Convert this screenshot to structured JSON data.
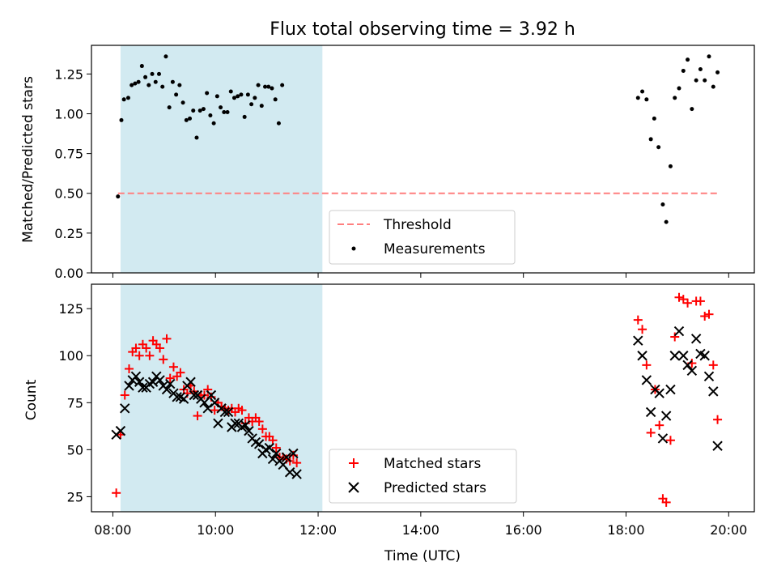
{
  "chart_data": [
    {
      "type": "scatter",
      "title": "Flux total observing time = 3.92 h",
      "xlabel": "",
      "ylabel": "Matched/Predicted stars",
      "xlim": [
        "07:35",
        "20:30"
      ],
      "ylim": [
        0,
        1.43
      ],
      "yticks": [
        "0.00",
        "0.25",
        "0.50",
        "0.75",
        "1.00",
        "1.25"
      ],
      "shaded_interval": [
        "08:09",
        "12:05"
      ],
      "shade_color": "#add8e6",
      "threshold": {
        "name": "Threshold",
        "value": 0.5,
        "x_start": "08:06",
        "x_end": "19:49",
        "color": "#ff7f7f"
      },
      "legend": {
        "placement": "lower-center",
        "entries": [
          "Threshold",
          "Measurements"
        ]
      },
      "series": [
        {
          "name": "Measurements",
          "color": "#000000",
          "points": [
            [
              "08:06",
              0.48
            ],
            [
              "08:10",
              0.96
            ],
            [
              "08:13",
              1.09
            ],
            [
              "08:18",
              1.1
            ],
            [
              "08:22",
              1.18
            ],
            [
              "08:26",
              1.19
            ],
            [
              "08:30",
              1.2
            ],
            [
              "08:34",
              1.3
            ],
            [
              "08:38",
              1.23
            ],
            [
              "08:42",
              1.18
            ],
            [
              "08:46",
              1.25
            ],
            [
              "08:50",
              1.2
            ],
            [
              "08:54",
              1.25
            ],
            [
              "08:58",
              1.17
            ],
            [
              "09:02",
              1.36
            ],
            [
              "09:06",
              1.04
            ],
            [
              "09:10",
              1.2
            ],
            [
              "09:14",
              1.12
            ],
            [
              "09:18",
              1.18
            ],
            [
              "09:22",
              1.07
            ],
            [
              "09:26",
              0.96
            ],
            [
              "09:30",
              0.97
            ],
            [
              "09:34",
              1.02
            ],
            [
              "09:38",
              0.85
            ],
            [
              "09:42",
              1.02
            ],
            [
              "09:46",
              1.03
            ],
            [
              "09:50",
              1.13
            ],
            [
              "09:54",
              0.99
            ],
            [
              "09:58",
              0.94
            ],
            [
              "10:02",
              1.11
            ],
            [
              "10:06",
              1.04
            ],
            [
              "10:10",
              1.01
            ],
            [
              "10:14",
              1.01
            ],
            [
              "10:18",
              1.14
            ],
            [
              "10:22",
              1.1
            ],
            [
              "10:26",
              1.11
            ],
            [
              "10:30",
              1.12
            ],
            [
              "10:34",
              0.98
            ],
            [
              "10:38",
              1.12
            ],
            [
              "10:42",
              1.06
            ],
            [
              "10:46",
              1.1
            ],
            [
              "10:50",
              1.18
            ],
            [
              "10:54",
              1.05
            ],
            [
              "10:58",
              1.17
            ],
            [
              "11:02",
              1.17
            ],
            [
              "11:06",
              1.16
            ],
            [
              "11:10",
              1.09
            ],
            [
              "11:14",
              0.94
            ],
            [
              "11:18",
              1.18
            ],
            [
              "18:14",
              1.1
            ],
            [
              "18:19",
              1.14
            ],
            [
              "18:24",
              1.09
            ],
            [
              "18:29",
              0.84
            ],
            [
              "18:33",
              0.97
            ],
            [
              "18:38",
              0.79
            ],
            [
              "18:43",
              0.43
            ],
            [
              "18:47",
              0.32
            ],
            [
              "18:52",
              0.67
            ],
            [
              "18:57",
              1.1
            ],
            [
              "19:02",
              1.16
            ],
            [
              "19:07",
              1.27
            ],
            [
              "19:12",
              1.34
            ],
            [
              "19:17",
              1.03
            ],
            [
              "19:22",
              1.21
            ],
            [
              "19:27",
              1.28
            ],
            [
              "19:32",
              1.21
            ],
            [
              "19:37",
              1.36
            ],
            [
              "19:42",
              1.17
            ],
            [
              "19:47",
              1.26
            ]
          ]
        }
      ]
    },
    {
      "type": "scatter",
      "title": "",
      "xlabel": "Time (UTC)",
      "ylabel": "Count",
      "xlim": [
        "07:35",
        "20:30"
      ],
      "ylim": [
        17,
        138
      ],
      "yticks": [
        "25",
        "50",
        "75",
        "100",
        "125"
      ],
      "xticks": [
        "08:00",
        "10:00",
        "12:00",
        "14:00",
        "16:00",
        "18:00",
        "20:00"
      ],
      "shaded_interval": [
        "08:09",
        "12:05"
      ],
      "shade_color": "#add8e6",
      "legend": {
        "placement": "lower-center",
        "entries": [
          "Matched stars",
          "Predicted stars"
        ]
      },
      "series": [
        {
          "name": "Matched stars",
          "marker": "plus",
          "color": "#ff0000",
          "points": [
            [
              "08:04",
              27
            ],
            [
              "08:09",
              58
            ],
            [
              "08:14",
              79
            ],
            [
              "08:19",
              93
            ],
            [
              "08:23",
              102
            ],
            [
              "08:27",
              104
            ],
            [
              "08:31",
              100
            ],
            [
              "08:35",
              106
            ],
            [
              "08:39",
              104
            ],
            [
              "08:43",
              100
            ],
            [
              "08:47",
              108
            ],
            [
              "08:51",
              106
            ],
            [
              "08:55",
              104
            ],
            [
              "08:59",
              98
            ],
            [
              "09:03",
              109
            ],
            [
              "09:07",
              88
            ],
            [
              "09:11",
              94
            ],
            [
              "09:15",
              89
            ],
            [
              "09:19",
              91
            ],
            [
              "09:23",
              82
            ],
            [
              "09:27",
              80
            ],
            [
              "09:31",
              84
            ],
            [
              "09:35",
              81
            ],
            [
              "09:39",
              68
            ],
            [
              "09:43",
              79
            ],
            [
              "09:47",
              79
            ],
            [
              "09:51",
              82
            ],
            [
              "09:55",
              78
            ],
            [
              "09:59",
              71
            ],
            [
              "10:03",
              75
            ],
            [
              "10:07",
              73
            ],
            [
              "10:11",
              72
            ],
            [
              "10:15",
              71
            ],
            [
              "10:19",
              72
            ],
            [
              "10:23",
              70
            ],
            [
              "10:27",
              72
            ],
            [
              "10:31",
              71
            ],
            [
              "10:35",
              64
            ],
            [
              "10:39",
              67
            ],
            [
              "10:43",
              65
            ],
            [
              "10:47",
              67
            ],
            [
              "10:51",
              65
            ],
            [
              "10:55",
              61
            ],
            [
              "10:59",
              57
            ],
            [
              "11:03",
              57
            ],
            [
              "11:07",
              55
            ],
            [
              "11:11",
              51
            ],
            [
              "11:15",
              46
            ],
            [
              "11:19",
              46
            ],
            [
              "11:23",
              45
            ],
            [
              "11:27",
              44
            ],
            [
              "11:31",
              47
            ],
            [
              "11:35",
              43
            ],
            [
              "18:14",
              119
            ],
            [
              "18:19",
              114
            ],
            [
              "18:24",
              95
            ],
            [
              "18:29",
              59
            ],
            [
              "18:34",
              82
            ],
            [
              "18:39",
              63
            ],
            [
              "18:43",
              24
            ],
            [
              "18:47",
              22
            ],
            [
              "18:52",
              55
            ],
            [
              "18:57",
              110
            ],
            [
              "19:02",
              131
            ],
            [
              "19:07",
              130
            ],
            [
              "19:12",
              128
            ],
            [
              "19:17",
              96
            ],
            [
              "19:22",
              129
            ],
            [
              "19:27",
              129
            ],
            [
              "19:32",
              121
            ],
            [
              "19:37",
              122
            ],
            [
              "19:42",
              95
            ],
            [
              "19:47",
              66
            ]
          ]
        },
        {
          "name": "Predicted stars",
          "marker": "x",
          "color": "#000000",
          "points": [
            [
              "08:04",
              58
            ],
            [
              "08:09",
              60
            ],
            [
              "08:14",
              72
            ],
            [
              "08:19",
              84
            ],
            [
              "08:23",
              87
            ],
            [
              "08:27",
              89
            ],
            [
              "08:31",
              86
            ],
            [
              "08:35",
              83
            ],
            [
              "08:39",
              83
            ],
            [
              "08:43",
              85
            ],
            [
              "08:47",
              86
            ],
            [
              "08:51",
              89
            ],
            [
              "08:55",
              87
            ],
            [
              "08:59",
              84
            ],
            [
              "09:03",
              82
            ],
            [
              "09:07",
              85
            ],
            [
              "09:11",
              80
            ],
            [
              "09:15",
              78
            ],
            [
              "09:19",
              78
            ],
            [
              "09:23",
              77
            ],
            [
              "09:27",
              84
            ],
            [
              "09:31",
              86
            ],
            [
              "09:35",
              79
            ],
            [
              "09:39",
              79
            ],
            [
              "09:43",
              77
            ],
            [
              "09:47",
              75
            ],
            [
              "09:51",
              72
            ],
            [
              "09:55",
              79
            ],
            [
              "09:59",
              75
            ],
            [
              "10:03",
              64
            ],
            [
              "10:07",
              72
            ],
            [
              "10:11",
              70
            ],
            [
              "10:15",
              70
            ],
            [
              "10:19",
              62
            ],
            [
              "10:23",
              64
            ],
            [
              "10:27",
              64
            ],
            [
              "10:31",
              62
            ],
            [
              "10:35",
              63
            ],
            [
              "10:39",
              60
            ],
            [
              "10:43",
              56
            ],
            [
              "10:47",
              54
            ],
            [
              "10:51",
              53
            ],
            [
              "10:55",
              48
            ],
            [
              "10:59",
              50
            ],
            [
              "11:03",
              51
            ],
            [
              "11:07",
              45
            ],
            [
              "11:11",
              48
            ],
            [
              "11:15",
              44
            ],
            [
              "11:19",
              42
            ],
            [
              "11:23",
              46
            ],
            [
              "11:27",
              38
            ],
            [
              "11:31",
              48
            ],
            [
              "11:35",
              37
            ],
            [
              "18:14",
              108
            ],
            [
              "18:19",
              100
            ],
            [
              "18:24",
              87
            ],
            [
              "18:29",
              70
            ],
            [
              "18:34",
              82
            ],
            [
              "18:39",
              80
            ],
            [
              "18:43",
              56
            ],
            [
              "18:47",
              68
            ],
            [
              "18:52",
              82
            ],
            [
              "18:57",
              100
            ],
            [
              "19:02",
              113
            ],
            [
              "19:07",
              100
            ],
            [
              "19:12",
              95
            ],
            [
              "19:17",
              92
            ],
            [
              "19:22",
              109
            ],
            [
              "19:27",
              101
            ],
            [
              "19:32",
              100
            ],
            [
              "19:37",
              89
            ],
            [
              "19:42",
              81
            ],
            [
              "19:47",
              52
            ]
          ]
        }
      ]
    }
  ]
}
